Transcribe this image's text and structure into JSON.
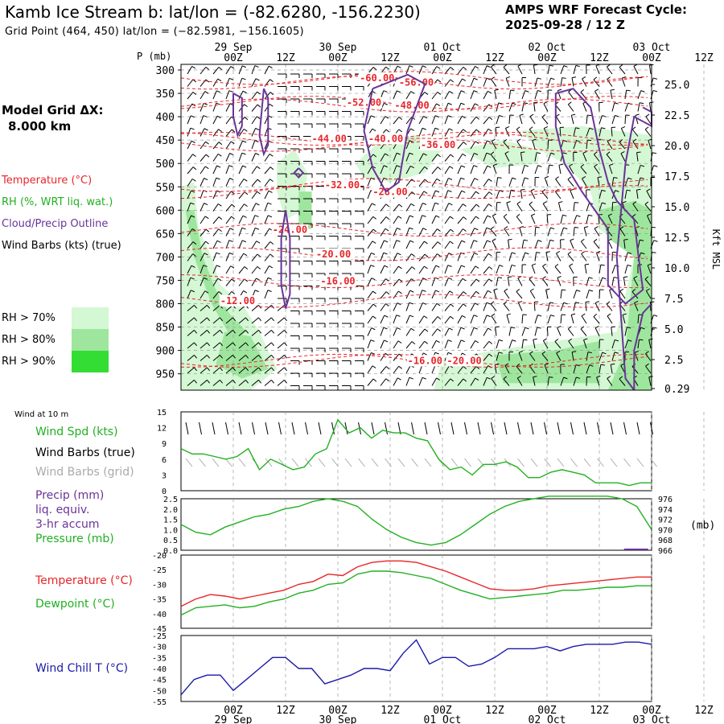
{
  "header": {
    "title": "Kamb Ice Stream b:  lat/lon = (-82.6280, -156.2230)",
    "subtitle": "Grid Point (464, 450) lat/lon = (−82.5981, −156.1605)",
    "cycle_line1": "AMPS WRF Forecast Cycle:",
    "cycle_line2": "2025-09-28 / 12  Z"
  },
  "side_info": {
    "grid_label": "Model Grid ΔX:",
    "grid_value": "8.000 km"
  },
  "legend": {
    "temperature": "Temperature (°C)",
    "rh": "RH (%, WRT liq. wat.)",
    "cloud": "Cloud/Precip Outline",
    "wind": "Wind Barbs (kts) (true)",
    "rh70": "RH > 70%",
    "rh80": "RH > 80%",
    "rh90": "RH > 90%"
  },
  "colors": {
    "temperature": "#e8262a",
    "rh": "#22b022",
    "cloud": "#6a3399",
    "rh70": "#d4f7d4",
    "rh80": "#9ee69e",
    "rh90": "#33dd33",
    "wind_chill": "#1a1aa8",
    "grid_barbs": "#aaaaaa"
  },
  "time_axis": {
    "hour_labels": [
      "00Z",
      "12Z",
      "00Z",
      "12Z",
      "00Z",
      "12Z",
      "00Z",
      "12Z",
      "00Z",
      "12Z"
    ],
    "date_labels": [
      "29 Sep",
      "30 Sep",
      "01 Oct",
      "02 Oct",
      "03 Oct"
    ],
    "p_unit": "P (mb)"
  },
  "chart_data": [
    {
      "type": "line",
      "panel": "vertical cross-section",
      "ylabel": "P (mb)",
      "y_ticks": [
        300,
        350,
        400,
        450,
        500,
        550,
        600,
        650,
        700,
        750,
        800,
        850,
        900,
        950
      ],
      "right_axis_label": "Kft MSL",
      "right_ticks": [
        "25.0",
        "22.5",
        "20.0",
        "17.5",
        "15.0",
        "12.5",
        "10.0",
        "7.5",
        "5.0",
        "2.5",
        "0.29"
      ],
      "temperature_contour_labels": [
        {
          "label": "-60.00",
          "time_h": 33,
          "p": 317
        },
        {
          "label": "-56.00",
          "time_h": 42,
          "p": 327
        },
        {
          "label": "-52.00",
          "time_h": 30,
          "p": 370
        },
        {
          "label": "-48.00",
          "time_h": 41,
          "p": 376
        },
        {
          "label": "-44.00",
          "time_h": 22,
          "p": 447
        },
        {
          "label": "-40.00",
          "time_h": 35,
          "p": 447
        },
        {
          "label": "-36.00",
          "time_h": 47,
          "p": 460
        },
        {
          "label": "-32.00",
          "time_h": 25,
          "p": 546
        },
        {
          "label": "-28.00",
          "time_h": 36,
          "p": 561
        },
        {
          "label": "-24.00",
          "time_h": 13,
          "p": 642
        },
        {
          "label": "-20.00",
          "time_h": 23,
          "p": 694
        },
        {
          "label": "-16.00",
          "time_h": 24,
          "p": 752
        },
        {
          "label": "-12.00",
          "time_h": 1,
          "p": 794
        },
        {
          "label": "-16.00",
          "time_h": 44,
          "p": 922
        },
        {
          "label": "-20.00",
          "time_h": 53,
          "p": 922
        }
      ]
    },
    {
      "type": "line",
      "panel": "10 m wind",
      "title": "Wind at 10 m",
      "series": [
        {
          "name": "Wind Spd (kts)",
          "values": [
            8,
            7,
            7,
            6.5,
            6,
            6.5,
            8,
            4,
            6,
            5,
            4,
            4.5,
            7,
            8,
            13.5,
            11,
            12,
            10,
            11.5,
            11,
            11,
            10,
            9.5,
            6,
            4,
            4.5,
            3,
            5,
            5,
            5.5,
            4.5,
            2.5,
            2.5,
            3.5,
            4,
            3.5,
            3,
            1.5,
            1.5,
            1.5,
            1,
            1.5,
            1.5
          ]
        }
      ],
      "y_ticks": [
        0,
        3,
        6,
        9,
        12,
        15
      ],
      "ylim": [
        0,
        15
      ],
      "labels": {
        "spd": "Wind Spd (kts)",
        "barbs_true": "Wind Barbs (true)",
        "barbs_grid": "Wind Barbs (grid)"
      }
    },
    {
      "type": "line",
      "panel": "precip/pressure",
      "series": [
        {
          "name": "Pressure (mb)",
          "values": [
            971,
            969.5,
            969,
            970.5,
            971.5,
            972.5,
            973,
            974,
            974.5,
            975.5,
            976,
            975.5,
            974.5,
            972,
            970,
            968.5,
            967.5,
            967,
            967.5,
            969,
            971,
            973,
            974.5,
            975.5,
            976,
            976.5,
            976.5,
            976.5,
            976.5,
            976.5,
            976,
            974.5,
            970
          ]
        }
      ],
      "precip_values": [
        0,
        0,
        0,
        0,
        0,
        0,
        0,
        0,
        0,
        0,
        0,
        0,
        0,
        0,
        0,
        0,
        0,
        0,
        0,
        0,
        0,
        0,
        0,
        0,
        0,
        0,
        0,
        0,
        0,
        0,
        0,
        0.08,
        0
      ],
      "left_ticks": [
        "0.0",
        "0.5",
        "1.0",
        "1.5",
        "2.0",
        "2.5"
      ],
      "right_ticks": [
        "966",
        "968",
        "970",
        "972",
        "974",
        "976"
      ],
      "right_unit": "(mb)",
      "labels": {
        "precip_1": "Precip (mm)",
        "precip_2": "liq. equiv.",
        "precip_3": "3-hr accum",
        "pressure": "Pressure (mb)"
      }
    },
    {
      "type": "line",
      "panel": "temperature/dewpoint",
      "series": [
        {
          "name": "Temperature (°C)",
          "values": [
            -37.5,
            -35,
            -33.5,
            -34,
            -35,
            -34,
            -33,
            -32,
            -30,
            -29,
            -26.5,
            -27,
            -24,
            -22.5,
            -22,
            -22,
            -22.5,
            -24,
            -25.5,
            -27.5,
            -29.5,
            -31.5,
            -32,
            -32,
            -31.5,
            -30.5,
            -30,
            -29.5,
            -29,
            -28.5,
            -28,
            -27.5,
            -27.5
          ]
        },
        {
          "name": "Dewpoint (°C)",
          "values": [
            -40.5,
            -38,
            -37.5,
            -37,
            -38,
            -37.5,
            -36,
            -35,
            -33,
            -32,
            -30,
            -29.5,
            -26.5,
            -25.5,
            -25.5,
            -26,
            -27,
            -28,
            -30,
            -32,
            -33.5,
            -35,
            -34.5,
            -34,
            -33.5,
            -33,
            -32,
            -32,
            -31.5,
            -31,
            -31,
            -30.5,
            -30.5
          ]
        }
      ],
      "y_ticks": [
        -20,
        -25,
        -30,
        -35,
        -40,
        -45
      ],
      "ylim": [
        -45,
        -20
      ]
    },
    {
      "type": "line",
      "panel": "wind chill",
      "series": [
        {
          "name": "Wind Chill T (°C)",
          "values": [
            -52,
            -45,
            -43,
            -43,
            -50,
            -45,
            -40,
            -35,
            -35,
            -40,
            -40,
            -47,
            -45,
            -43,
            -40,
            -40,
            -41,
            -33,
            -27,
            -38,
            -35,
            -35,
            -39,
            -38,
            -35,
            -31,
            -31,
            -31,
            -30,
            -32,
            -30,
            -29,
            -29,
            -29,
            -28,
            -28,
            -29
          ]
        }
      ],
      "y_ticks": [
        -25,
        -30,
        -35,
        -40,
        -45,
        -50,
        -55
      ],
      "ylim": [
        -55,
        -25
      ]
    }
  ]
}
